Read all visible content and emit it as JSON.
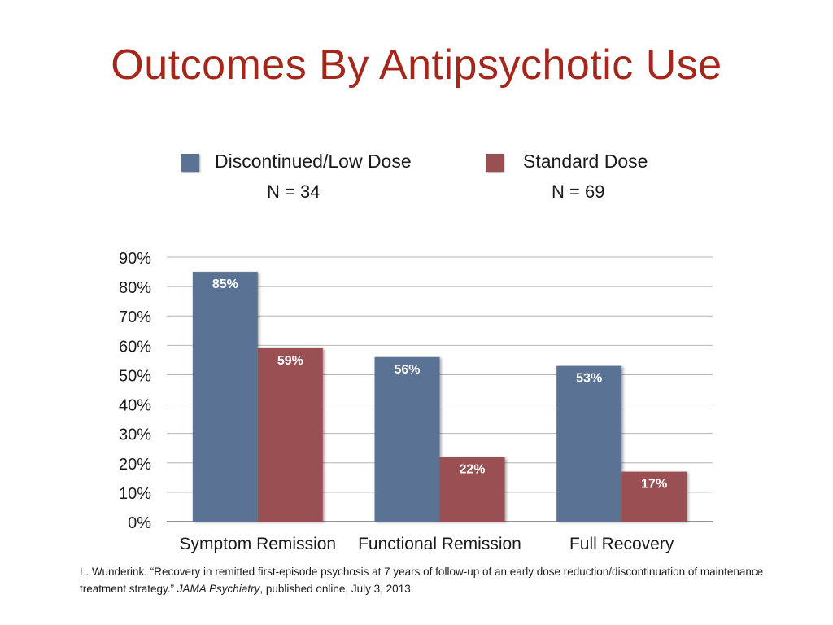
{
  "slide": {
    "title": "Outcomes By Antipsychotic Use"
  },
  "legend": [
    {
      "label": "Discontinued/Low Dose",
      "n": "N = 34",
      "color": "#5a7394"
    },
    {
      "label": "Standard Dose",
      "n": "N = 69",
      "color": "#9a4f52"
    }
  ],
  "citation": {
    "part1": "L. Wunderink. “Recovery in remitted first-episode psychosis at 7 years of follow-up of an early dose reduction/discontinuation of maintenance treatment strategy.” ",
    "journal": "JAMA Psychiatry",
    "part2": ", published online, July 3, 2013."
  },
  "chart_data": {
    "type": "bar",
    "categories": [
      "Symptom Remission",
      "Functional Remission",
      "Full Recovery"
    ],
    "series": [
      {
        "name": "Discontinued/Low Dose",
        "values": [
          85,
          56,
          53
        ],
        "labels": [
          "85%",
          "56%",
          "53%"
        ],
        "color": "#5a7394"
      },
      {
        "name": "Standard Dose",
        "values": [
          59,
          22,
          17
        ],
        "labels": [
          "59%",
          "22%",
          "17%"
        ],
        "color": "#9a4f52"
      }
    ],
    "ylim": [
      0,
      90
    ],
    "yticks": [
      0,
      10,
      20,
      30,
      40,
      50,
      60,
      70,
      80,
      90
    ],
    "ytick_labels": [
      "0%",
      "10%",
      "20%",
      "30%",
      "40%",
      "50%",
      "60%",
      "70%",
      "80%",
      "90%"
    ],
    "grid": true,
    "legend_position": "top"
  }
}
